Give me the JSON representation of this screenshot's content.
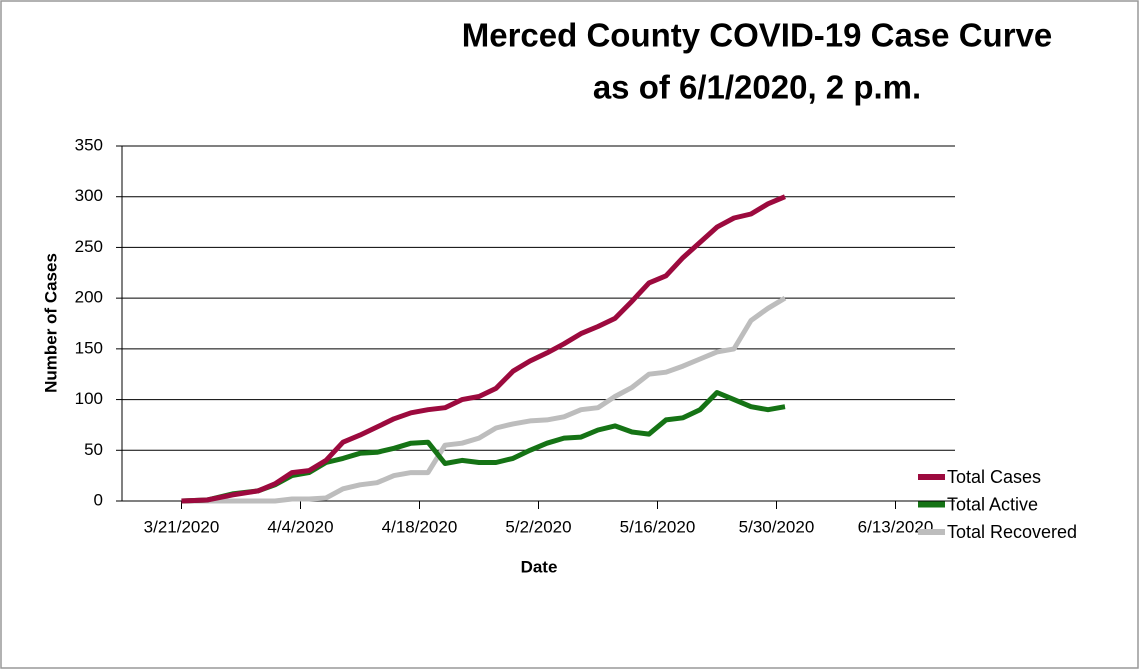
{
  "chart_data": {
    "type": "line",
    "title": [
      "Merced County COVID-19 Case Curve",
      "as of 6/1/2020, 2 p.m."
    ],
    "x_label": "Date",
    "y_label": "Number of Cases",
    "x": [
      "3/21/2020",
      "3/24/2020",
      "3/27/2020",
      "3/30/2020",
      "4/1/2020",
      "4/3/2020",
      "4/5/2020",
      "4/7/2020",
      "4/9/2020",
      "4/11/2020",
      "4/13/2020",
      "4/15/2020",
      "4/17/2020",
      "4/19/2020",
      "4/21/2020",
      "4/23/2020",
      "4/25/2020",
      "4/27/2020",
      "4/29/2020",
      "5/1/2020",
      "5/3/2020",
      "5/5/2020",
      "5/7/2020",
      "5/9/2020",
      "5/11/2020",
      "5/13/2020",
      "5/15/2020",
      "5/17/2020",
      "5/19/2020",
      "5/21/2020",
      "5/23/2020",
      "5/25/2020",
      "5/27/2020",
      "5/29/2020",
      "5/31/2020"
    ],
    "series": [
      {
        "name": "Total Cases",
        "color": "#9c0a3e",
        "values": [
          0,
          1,
          6,
          10,
          17,
          28,
          30,
          40,
          58,
          65,
          73,
          81,
          87,
          90,
          92,
          100,
          103,
          111,
          128,
          138,
          146,
          155,
          165,
          172,
          180,
          197,
          215,
          222,
          240,
          255,
          270,
          279,
          283,
          293,
          300
        ]
      },
      {
        "name": "Total Active",
        "color": "#157315",
        "values": [
          0,
          1,
          7,
          10,
          16,
          25,
          28,
          38,
          42,
          47,
          48,
          52,
          57,
          58,
          37,
          40,
          38,
          38,
          42,
          50,
          57,
          62,
          63,
          70,
          74,
          68,
          66,
          80,
          82,
          90,
          107,
          100,
          93,
          90,
          93
        ]
      },
      {
        "name": "Total Recovered",
        "color": "#bdbdbd",
        "values": [
          0,
          0,
          0,
          0,
          0,
          2,
          2,
          3,
          12,
          16,
          18,
          25,
          28,
          28,
          55,
          57,
          62,
          72,
          76,
          79,
          80,
          83,
          90,
          92,
          103,
          112,
          125,
          127,
          133,
          140,
          147,
          150,
          178,
          190,
          200
        ]
      }
    ],
    "xlim": [
      "3/14/2020",
      "6/20/2020"
    ],
    "xticks": [
      "3/21/2020",
      "4/4/2020",
      "4/18/2020",
      "5/2/2020",
      "5/16/2020",
      "5/30/2020",
      "6/13/2020"
    ],
    "ylim": [
      0,
      350
    ],
    "yticks": [
      0,
      50,
      100,
      150,
      200,
      250,
      300,
      350
    ],
    "grid": true,
    "legend": "right"
  }
}
